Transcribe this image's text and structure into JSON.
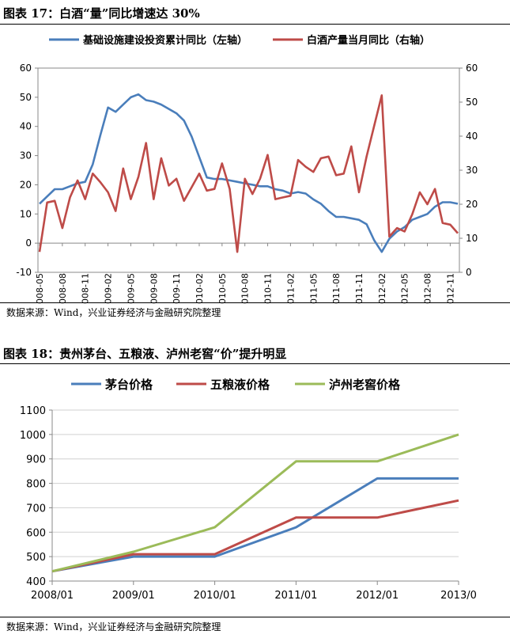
{
  "chart_data": [
    {
      "type": "line",
      "figure_title": "图表 17：白酒“量”同比增速达 30%",
      "source": "数据来源：Wind，兴业证券经济与金融研究院整理",
      "y_left": {
        "min": -10,
        "max": 60,
        "step": 10
      },
      "y_right": {
        "min": 0,
        "max": 60,
        "step": 10
      },
      "x_tick_labels": [
        "2008-05",
        "2008-08",
        "2008-11",
        "2009-02",
        "2009-05",
        "2009-08",
        "2009-11",
        "2010-02",
        "2010-05",
        "2010-08",
        "2010-11",
        "2011-02",
        "2011-05",
        "2011-08",
        "2011-11",
        "2012-02",
        "2012-05",
        "2012-08",
        "2012-11"
      ],
      "months": [
        "2008-05",
        "2008-06",
        "2008-07",
        "2008-08",
        "2008-09",
        "2008-10",
        "2008-11",
        "2008-12",
        "2009-01",
        "2009-02",
        "2009-03",
        "2009-04",
        "2009-05",
        "2009-06",
        "2009-07",
        "2009-08",
        "2009-09",
        "2009-10",
        "2009-11",
        "2009-12",
        "2010-01",
        "2010-02",
        "2010-03",
        "2010-04",
        "2010-05",
        "2010-06",
        "2010-07",
        "2010-08",
        "2010-09",
        "2010-10",
        "2010-11",
        "2010-12",
        "2011-01",
        "2011-02",
        "2011-03",
        "2011-04",
        "2011-05",
        "2011-06",
        "2011-07",
        "2011-08",
        "2011-09",
        "2011-10",
        "2011-11",
        "2011-12",
        "2012-01",
        "2012-02",
        "2012-03",
        "2012-04",
        "2012-05",
        "2012-06",
        "2012-07",
        "2012-08",
        "2012-09",
        "2012-10",
        "2012-11",
        "2012-12"
      ],
      "series": [
        {
          "name": "基础设施建设投资累计同比（左轴）",
          "axis": "left",
          "color": "#4a7ebb",
          "values": [
            13.5,
            16,
            18.5,
            18.5,
            19.5,
            20.5,
            21,
            27,
            37,
            46.5,
            45,
            47.5,
            50,
            51,
            49,
            48.5,
            47.5,
            46,
            44.5,
            42,
            36.5,
            29.5,
            22.5,
            22,
            22,
            21.5,
            21,
            20.5,
            20,
            19.5,
            19.5,
            18.5,
            18,
            17,
            17.5,
            17,
            15,
            13.5,
            11,
            9,
            9,
            8.5,
            8,
            6.5,
            1,
            -3,
            1.5,
            4,
            5.5,
            8,
            9,
            10,
            12.5,
            14,
            14,
            13.5
          ]
        },
        {
          "name": "白酒产量当月同比（右轴）",
          "axis": "right",
          "color": "#be4b48",
          "values": [
            6,
            20.5,
            21,
            13,
            22,
            27,
            21.5,
            29,
            26.5,
            23.5,
            18,
            30.5,
            21.5,
            28,
            38,
            21.5,
            33.5,
            25.5,
            27.5,
            21,
            25,
            29,
            24,
            24.5,
            32,
            24.5,
            6,
            27.5,
            23,
            27.5,
            34.5,
            21.5,
            22,
            22.5,
            33,
            31,
            29.5,
            33.5,
            34,
            28.5,
            29,
            37,
            23.5,
            34,
            43,
            52,
            10.5,
            13,
            12,
            17,
            23.5,
            20,
            24.5,
            14.5,
            14,
            11.5
          ]
        }
      ]
    },
    {
      "type": "line",
      "figure_title": "图表 18：贵州茅台、五粮液、泸州老窖“价”提升明显",
      "source": "数据来源：Wind，兴业证券经济与金融研究院整理",
      "y_axis": {
        "min": 400,
        "max": 1100,
        "step": 100
      },
      "x_tick_labels": [
        "2008/01",
        "2009/01",
        "2010/01",
        "2011/01",
        "2012/01",
        "2013/0"
      ],
      "x": [
        0,
        12,
        24,
        36,
        48,
        60
      ],
      "series": [
        {
          "name": "茅台价格",
          "color": "#4a7ebb",
          "x": [
            0,
            12,
            24,
            36,
            48,
            60
          ],
          "values": [
            440,
            500,
            500,
            620,
            820,
            820
          ]
        },
        {
          "name": "五粮液价格",
          "color": "#be4b48",
          "x": [
            0,
            12,
            24,
            36,
            48,
            60
          ],
          "values": [
            440,
            510,
            510,
            660,
            660,
            730
          ]
        },
        {
          "name": "泸州老窖价格",
          "color": "#9bbb59",
          "x": [
            0,
            12,
            24,
            36,
            48,
            60
          ],
          "values": [
            440,
            520,
            620,
            890,
            890,
            1000
          ]
        }
      ]
    }
  ]
}
